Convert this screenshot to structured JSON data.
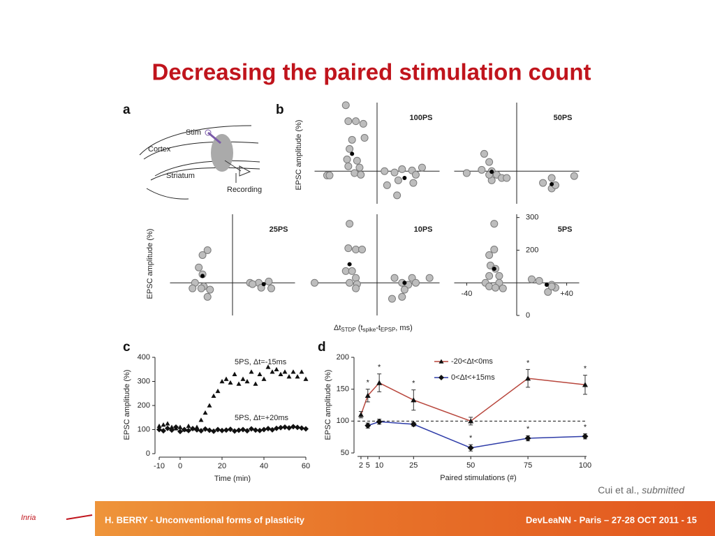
{
  "title": "Decreasing the paired stimulation count",
  "citation": {
    "authors": "Cui et al.,",
    "status": "submitted"
  },
  "footer": {
    "left": "H. BERRY - Unconventional forms of plasticity",
    "right": "DevLeaNN - Paris – 27-28 OCT 2011 - 15"
  },
  "logo": "Inria",
  "panel_a": {
    "letter": "a",
    "labels": [
      "Stim",
      "Cortex",
      "Striatum",
      "Recording"
    ]
  },
  "panel_b": {
    "type": "scatter",
    "letter": "b",
    "y_label": "EPSC amplitude (%)",
    "x_label_parts": [
      "Δt",
      "STDP",
      " (t",
      "spike",
      "-t",
      "EPSP",
      ", ms)"
    ],
    "xlim": [
      -50,
      50
    ],
    "ylim": [
      0,
      310
    ],
    "origin": {
      "x": 0,
      "y": 100
    },
    "subplots": [
      {
        "name": "100PS",
        "x": [
          -25,
          -23,
          -17,
          -11,
          -10,
          -20,
          -22,
          -24,
          -16,
          -23,
          -14,
          -18,
          -40,
          -38,
          -13,
          6,
          14,
          20,
          28,
          36,
          31,
          17,
          29,
          16,
          8
        ],
        "values": [
          302,
          253,
          253,
          245,
          202,
          196,
          168,
          136,
          132,
          115,
          111,
          94,
          87,
          87,
          89,
          100,
          96,
          106,
          102,
          111,
          89,
          72,
          64,
          26,
          57
        ],
        "mean_x": [
          -20,
          22
        ],
        "mean_values": [
          153,
          79
        ]
      },
      {
        "name": "50PS",
        "x": [
          -26,
          -22,
          -28,
          -40,
          -20,
          -16,
          -12,
          -20,
          -8,
          -22,
          28,
          21,
          28,
          46,
          31
        ],
        "values": [
          153,
          128,
          104,
          94,
          100,
          89,
          79,
          72,
          79,
          89,
          79,
          64,
          47,
          85,
          57
        ],
        "mean_x": [
          -20,
          28
        ],
        "mean_values": [
          98,
          60
        ]
      },
      {
        "name": "25PS",
        "x": [
          -20,
          -24,
          -27,
          -24,
          -30,
          -23,
          -25,
          -18,
          -32,
          -20,
          14,
          21,
          29,
          23,
          31,
          16
        ],
        "values": [
          200,
          185,
          147,
          126,
          100,
          89,
          83,
          79,
          83,
          57,
          100,
          100,
          104,
          85,
          83,
          96
        ],
        "mean_x": [
          -24,
          25
        ],
        "mean_values": [
          121,
          96
        ]
      },
      {
        "name": "10PS",
        "x": [
          -22,
          -23,
          -17,
          -12,
          -25,
          -20,
          -17,
          -22,
          -16,
          -50,
          -17,
          14,
          28,
          20,
          25,
          31,
          42,
          22,
          20,
          12
        ],
        "values": [
          281,
          206,
          202,
          202,
          136,
          136,
          115,
          100,
          96,
          100,
          83,
          115,
          115,
          100,
          94,
          100,
          115,
          79,
          57,
          51
        ],
        "mean_x": [
          -22,
          22
        ],
        "mean_values": [
          157,
          100
        ]
      },
      {
        "name": "5PS",
        "x": [
          -18,
          -18,
          -22,
          -21,
          -17,
          -22,
          -14,
          -25,
          -14,
          -22,
          -17,
          -11,
          12,
          18,
          28,
          31,
          25,
          28
        ],
        "values": [
          281,
          202,
          185,
          153,
          143,
          121,
          121,
          100,
          100,
          89,
          85,
          83,
          111,
          106,
          94,
          85,
          72,
          89
        ],
        "mean_x": [
          -18,
          24
        ],
        "mean_values": [
          143,
          94
        ],
        "yticks": [
          0,
          200,
          300
        ],
        "xticks": [
          -40,
          {
            "value": 40,
            "label": "+40"
          }
        ]
      }
    ]
  },
  "panel_c": {
    "type": "scatter",
    "letter": "c",
    "x_label": "Time (min)",
    "y_label": "EPSC amplitude (%)",
    "xlim": [
      -10,
      60
    ],
    "ylim": [
      0,
      400
    ],
    "xticks": [
      -10,
      0,
      20,
      40,
      60
    ],
    "yticks": [
      0,
      100,
      200,
      300,
      400
    ],
    "x": [
      -10,
      -8,
      -6,
      -4,
      -2,
      0,
      2,
      4,
      6,
      8,
      10,
      12,
      14,
      16,
      18,
      20,
      22,
      24,
      26,
      28,
      30,
      32,
      34,
      36,
      38,
      40,
      42,
      44,
      46,
      48,
      50,
      52,
      54,
      56,
      58,
      60
    ],
    "series": [
      {
        "name": "5PS, Δt=-15ms",
        "marker": "triangle",
        "color": "#111",
        "values": [
          115,
          120,
          125,
          110,
          105,
          110,
          100,
          115,
          105,
          110,
          140,
          170,
          200,
          240,
          260,
          300,
          310,
          295,
          330,
          290,
          310,
          300,
          340,
          290,
          330,
          310,
          360,
          340,
          350,
          330,
          340,
          320,
          340,
          320,
          340,
          310
        ]
      },
      {
        "name": "5PS, Δt=+20ms",
        "marker": "diamond",
        "color": "#111",
        "values": [
          100,
          95,
          105,
          98,
          110,
          92,
          100,
          96,
          104,
          99,
          95,
          102,
          97,
          93,
          100,
          96,
          98,
          101,
          94,
          97,
          100,
          95,
          103,
          98,
          96,
          100,
          104,
          99,
          105,
          108,
          110,
          107,
          112,
          109,
          106,
          103
        ]
      }
    ]
  },
  "panel_d": {
    "type": "line",
    "letter": "d",
    "x_label": "Paired stimulations (#)",
    "y_label": "EPSC amplitude (%)",
    "xlim": [
      0,
      100
    ],
    "ylim": [
      50,
      200
    ],
    "xticks": [
      2,
      5,
      10,
      25,
      50,
      75,
      100
    ],
    "yticks": [
      50,
      100,
      150,
      200
    ],
    "reference": 100,
    "x": [
      2,
      5,
      10,
      25,
      50,
      75,
      100
    ],
    "series": [
      {
        "name": "-20<Δt<0ms",
        "marker": "triangle",
        "color": "#b8463c",
        "values": [
          110,
          140,
          160,
          133,
          100,
          167,
          157
        ],
        "errors": [
          5,
          10,
          14,
          16,
          6,
          14,
          15
        ],
        "stars": [
          null,
          "*",
          "*",
          "*",
          null,
          "*",
          "*"
        ]
      },
      {
        "name": "0<Δt<+15ms",
        "marker": "diamond",
        "color": "#2e3ca8",
        "values": [
          null,
          93,
          99,
          95,
          58,
          73,
          76
        ],
        "errors": [
          null,
          4,
          4,
          3,
          5,
          4,
          4
        ],
        "stars": [
          null,
          null,
          null,
          null,
          "*",
          "*",
          "*"
        ]
      }
    ]
  }
}
